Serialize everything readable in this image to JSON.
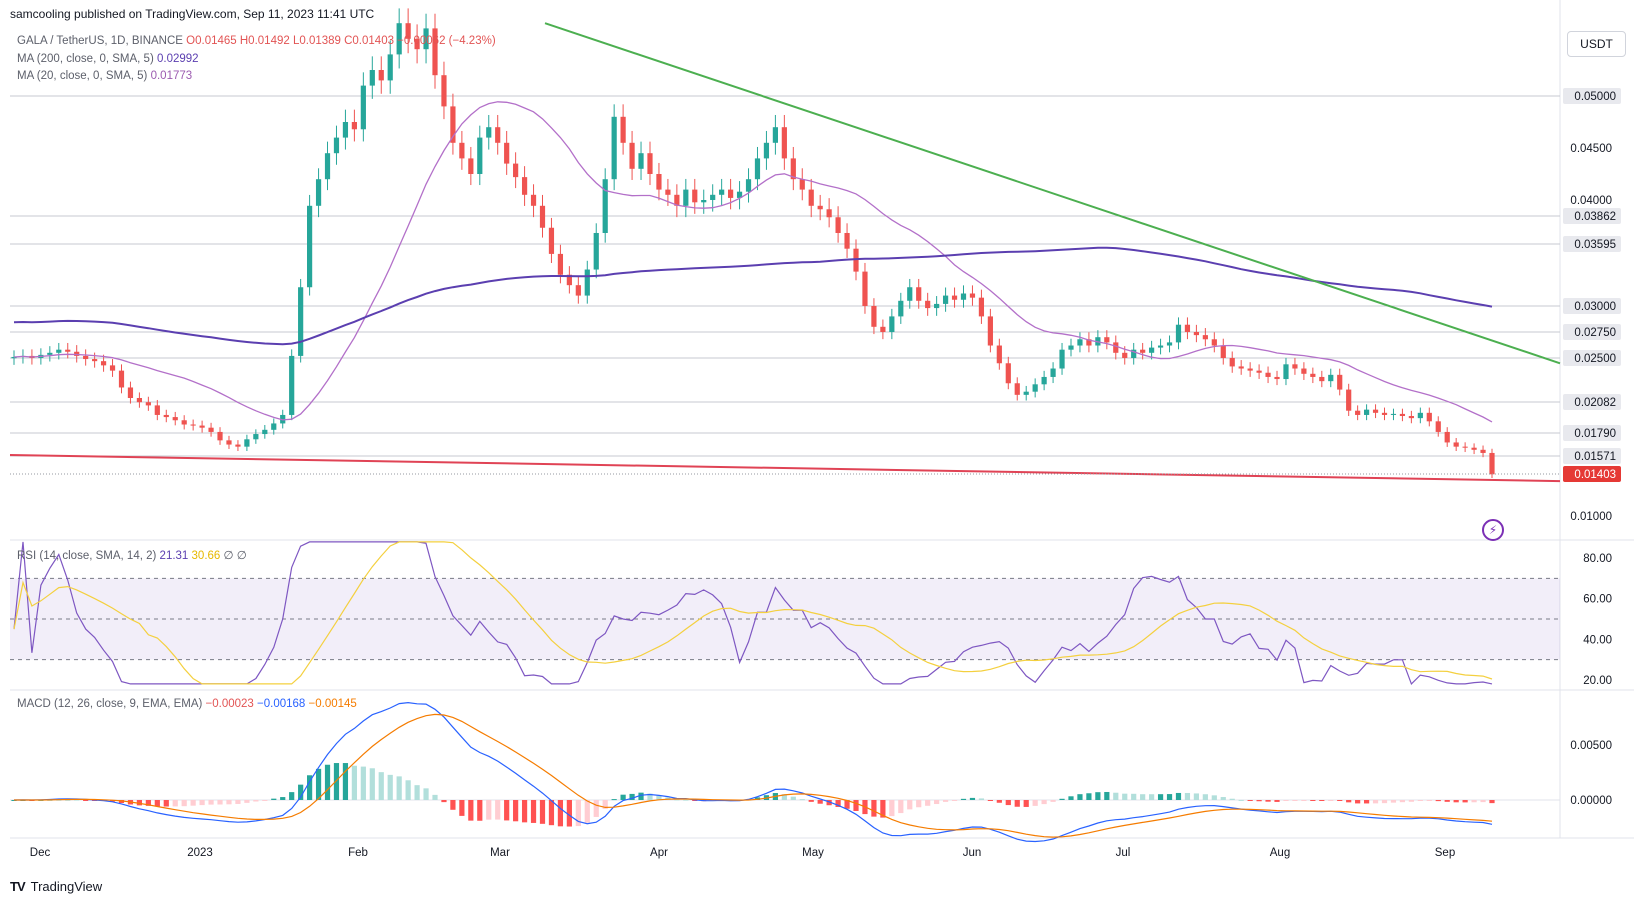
{
  "header": {
    "published": "samcooling published on TradingView.com, Sep 11, 2023 11:41 UTC"
  },
  "legend_main": {
    "symbol": "GALA / TetherUS, 1D, BINANCE",
    "ohlc": "O0.01465 H0.01492 L0.01389 C0.01403 −0.00062 (−4.23%)",
    "ma200": "MA (200, close, 0, SMA, 5)",
    "ma200_value": "0.02992",
    "ma20": "MA (20, close, 0, SMA, 5)",
    "ma20_value": "0.01773"
  },
  "legend_rsi": {
    "label": "RSI (14, close, SMA, 14, 2)",
    "value": "21.31",
    "ma_value": "30.66",
    "extra1": "∅",
    "extra2": "∅"
  },
  "legend_macd": {
    "label": "MACD (12, 26, close, 9, EMA, EMA)",
    "hist": "−0.00023",
    "macd": "−0.00168",
    "signal": "−0.00145"
  },
  "currency_button": "USDT",
  "brand": "TradingView",
  "colors": {
    "up": "#26a69a",
    "down": "#ef5350",
    "ma200": "#5b3fb0",
    "ma20": "#b370c9",
    "trend_green": "#4caf50",
    "trend_red": "#e04355",
    "rsi": "#7e57c2",
    "rsi_ma": "#f4d03f",
    "macd": "#2962ff",
    "signal": "#f57c00",
    "price_label": "#e53935"
  },
  "chart_data": {
    "type": "candlestick",
    "x_ticks": [
      "Dec",
      "2023",
      "Feb",
      "Mar",
      "Apr",
      "May",
      "Jun",
      "Jul",
      "Aug",
      "Sep"
    ],
    "price_axis": {
      "ticks": [
        "0.04500",
        "0.04000",
        "0.02500",
        "0.01000"
      ],
      "levels": [
        "0.05000",
        "0.03862",
        "0.03595",
        "0.03000",
        "0.02750",
        "0.02500",
        "0.02082",
        "0.01790",
        "0.01571"
      ],
      "last": "0.01403"
    },
    "rsi_axis": {
      "ticks": [
        "80.00",
        "60.00",
        "40.00",
        "20.00"
      ],
      "upper_band": 70,
      "middle": 50,
      "lower_band": 30
    },
    "macd_axis": {
      "ticks": [
        "0.00500",
        "0.00000"
      ]
    },
    "close_series": [
      0.0251,
      0.0252,
      0.025,
      0.0253,
      0.0255,
      0.0258,
      0.0256,
      0.0252,
      0.0249,
      0.0247,
      0.0243,
      0.0238,
      0.0222,
      0.0212,
      0.0208,
      0.0205,
      0.0196,
      0.0194,
      0.0191,
      0.0187,
      0.0186,
      0.0184,
      0.018,
      0.0172,
      0.0168,
      0.0166,
      0.0173,
      0.0178,
      0.0182,
      0.0188,
      0.0196,
      0.0252,
      0.0318,
      0.0395,
      0.042,
      0.0445,
      0.046,
      0.0475,
      0.0468,
      0.051,
      0.0525,
      0.0515,
      0.054,
      0.057,
      0.0555,
      0.0545,
      0.0565,
      0.052,
      0.049,
      0.0455,
      0.044,
      0.0425,
      0.046,
      0.047,
      0.0455,
      0.0435,
      0.0422,
      0.0405,
      0.0395,
      0.0375,
      0.035,
      0.033,
      0.032,
      0.031,
      0.0335,
      0.037,
      0.042,
      0.048,
      0.0455,
      0.043,
      0.0445,
      0.0425,
      0.041,
      0.0405,
      0.0395,
      0.041,
      0.0398,
      0.04,
      0.0405,
      0.041,
      0.0402,
      0.0408,
      0.042,
      0.044,
      0.0455,
      0.047,
      0.044,
      0.042,
      0.041,
      0.0395,
      0.0392,
      0.0385,
      0.037,
      0.0355,
      0.0333,
      0.03,
      0.028,
      0.0275,
      0.029,
      0.0305,
      0.0318,
      0.0305,
      0.0298,
      0.0302,
      0.031,
      0.0306,
      0.0312,
      0.0308,
      0.029,
      0.0262,
      0.0245,
      0.0226,
      0.0215,
      0.0218,
      0.0225,
      0.0232,
      0.024,
      0.0258,
      0.0262,
      0.0268,
      0.0262,
      0.027,
      0.0265,
      0.0255,
      0.025,
      0.0258,
      0.0255,
      0.026,
      0.0262,
      0.0265,
      0.0282,
      0.0275,
      0.0272,
      0.0268,
      0.0262,
      0.025,
      0.0242,
      0.024,
      0.0238,
      0.0236,
      0.0232,
      0.023,
      0.0244,
      0.024,
      0.0235,
      0.0232,
      0.0228,
      0.0234,
      0.022,
      0.02,
      0.0196,
      0.0201,
      0.0198,
      0.0196,
      0.0197,
      0.0195,
      0.0193,
      0.0198,
      0.019,
      0.018,
      0.017,
      0.0166,
      0.0165,
      0.0163,
      0.016,
      0.014
    ]
  }
}
